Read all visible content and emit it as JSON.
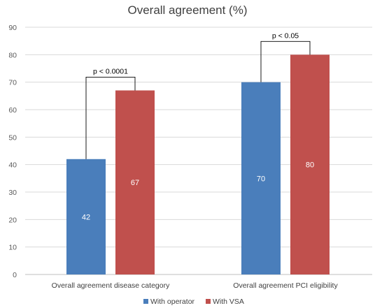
{
  "chart_data": {
    "type": "bar",
    "title": "Overall agreement (%)",
    "xlabel": "",
    "ylabel": "",
    "ylim": [
      0,
      90
    ],
    "yticks": [
      0,
      10,
      20,
      30,
      40,
      50,
      60,
      70,
      80,
      90
    ],
    "grid": true,
    "legend_position": "bottom",
    "categories": [
      "Overall agreement disease category",
      "Overall agreement PCI eligibility"
    ],
    "series": [
      {
        "name": "With operator",
        "values": [
          42,
          70
        ],
        "color": "#4A7EBB"
      },
      {
        "name": "With VSA",
        "values": [
          67,
          80
        ],
        "color": "#C0504D"
      }
    ],
    "data_labels": [
      [
        "42",
        "67"
      ],
      [
        "70",
        "80"
      ]
    ],
    "annotations": [
      {
        "category_index": 0,
        "text": "p < 0.0001"
      },
      {
        "category_index": 1,
        "text": "p < 0.05"
      }
    ]
  }
}
